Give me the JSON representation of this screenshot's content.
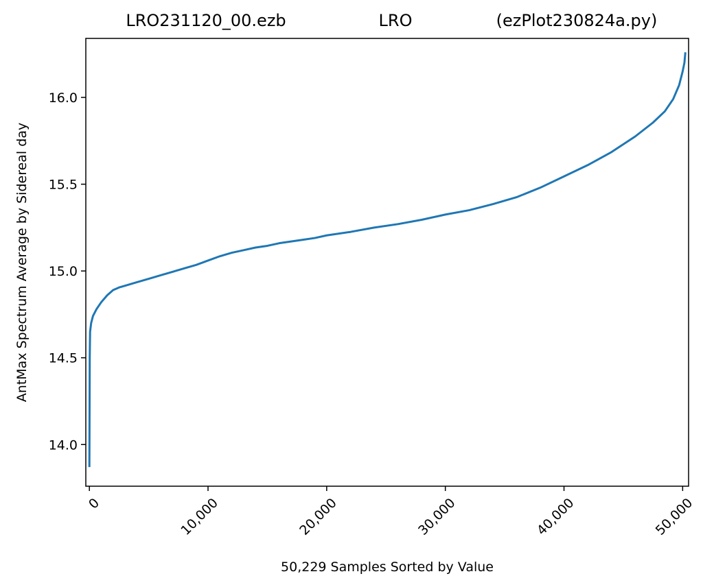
{
  "chart_data": {
    "type": "line",
    "title": {
      "left": "LRO231120_00.ezb",
      "center": "LRO",
      "right": "(ezPlot230824a.py)"
    },
    "xlabel": "50,229 Samples Sorted by Value",
    "ylabel": "AntMax Spectrum Average by Sidereal day",
    "xlim": [
      -300,
      50500
    ],
    "ylim": [
      13.76,
      16.34
    ],
    "x_ticks": [
      0,
      10000,
      20000,
      30000,
      40000,
      50000
    ],
    "x_tick_labels": [
      "0",
      "10,000",
      "20,000",
      "30,000",
      "40,000",
      "50,000"
    ],
    "y_ticks": [
      14.0,
      14.5,
      15.0,
      15.5,
      16.0
    ],
    "y_tick_labels": [
      "14.0",
      "14.5",
      "15.0",
      "15.5",
      "16.0"
    ],
    "grid": false,
    "line_color": "#1f77b4",
    "series": [
      {
        "values": [
          [
            0,
            13.87
          ],
          [
            30,
            14.5
          ],
          [
            60,
            14.65
          ],
          [
            150,
            14.7
          ],
          [
            300,
            14.74
          ],
          [
            600,
            14.78
          ],
          [
            1000,
            14.82
          ],
          [
            1500,
            14.86
          ],
          [
            2000,
            14.89
          ],
          [
            2500,
            14.905
          ],
          [
            3000,
            14.915
          ],
          [
            4000,
            14.935
          ],
          [
            5000,
            14.955
          ],
          [
            6000,
            14.975
          ],
          [
            7000,
            14.995
          ],
          [
            8000,
            15.015
          ],
          [
            9000,
            15.035
          ],
          [
            10000,
            15.06
          ],
          [
            11000,
            15.085
          ],
          [
            12000,
            15.105
          ],
          [
            13000,
            15.12
          ],
          [
            14000,
            15.135
          ],
          [
            15000,
            15.145
          ],
          [
            16000,
            15.16
          ],
          [
            17000,
            15.17
          ],
          [
            18000,
            15.18
          ],
          [
            19000,
            15.19
          ],
          [
            20000,
            15.205
          ],
          [
            22000,
            15.225
          ],
          [
            24000,
            15.25
          ],
          [
            26000,
            15.27
          ],
          [
            28000,
            15.295
          ],
          [
            30000,
            15.325
          ],
          [
            32000,
            15.35
          ],
          [
            34000,
            15.385
          ],
          [
            36000,
            15.425
          ],
          [
            38000,
            15.48
          ],
          [
            40000,
            15.545
          ],
          [
            42000,
            15.61
          ],
          [
            44000,
            15.685
          ],
          [
            46000,
            15.775
          ],
          [
            47500,
            15.855
          ],
          [
            48500,
            15.92
          ],
          [
            49200,
            15.99
          ],
          [
            49700,
            16.07
          ],
          [
            50000,
            16.15
          ],
          [
            50150,
            16.2
          ],
          [
            50229,
            16.26
          ]
        ]
      }
    ]
  }
}
